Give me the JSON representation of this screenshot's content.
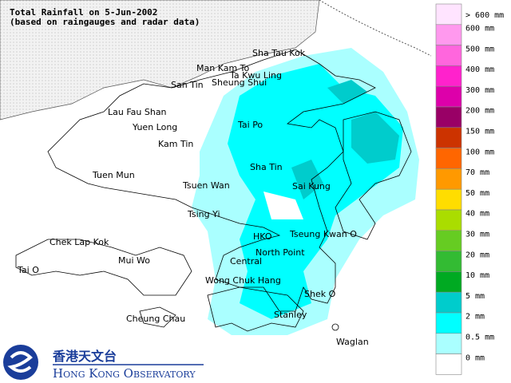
{
  "title": {
    "line1": "Total Rainfall on 5-Jun-2002",
    "line2": "(based on raingauges and radar data)"
  },
  "places": [
    "Sha Tau Kok",
    "Man Kam To",
    "Ta Kwu Ling",
    "San Tin",
    "Sheung Shui",
    "Lau Fau Shan",
    "Yuen Long",
    "Kam Tin",
    "Tai Po",
    "Tuen Mun",
    "Tsuen Wan",
    "Sha Tin",
    "Sai Kung",
    "Tsing Yi",
    "Chek Lap Kok",
    "HKO",
    "Tseung Kwan O",
    "North Point",
    "Mui Wo",
    "Central",
    "Tai O",
    "Wong Chuk Hang",
    "Shek O",
    "Stanley",
    "Cheung Chau",
    "Waglan"
  ],
  "legend": [
    {
      "label": "> 600 mm",
      "color": "#ffe4ff"
    },
    {
      "label": "600 mm",
      "color": "#ff99ee"
    },
    {
      "label": "500 mm",
      "color": "#ff66dd"
    },
    {
      "label": "400 mm",
      "color": "#ff22cc"
    },
    {
      "label": "300 mm",
      "color": "#dd00aa"
    },
    {
      "label": "200 mm",
      "color": "#990066"
    },
    {
      "label": "150 mm",
      "color": "#cc3300"
    },
    {
      "label": "100 mm",
      "color": "#ff6600"
    },
    {
      "label": "70 mm",
      "color": "#ff9900"
    },
    {
      "label": "50 mm",
      "color": "#ffdd00"
    },
    {
      "label": "40 mm",
      "color": "#aadd00"
    },
    {
      "label": "30 mm",
      "color": "#66cc22"
    },
    {
      "label": "20 mm",
      "color": "#33bb33"
    },
    {
      "label": "10 mm",
      "color": "#00aa22"
    },
    {
      "label": "5 mm",
      "color": "#00cccc"
    },
    {
      "label": "2 mm",
      "color": "#00ffff"
    },
    {
      "label": "0.5 mm",
      "color": "#aaffff"
    },
    {
      "label": "0 mm",
      "color": "#ffffff"
    }
  ],
  "logo": {
    "chinese": "香港天文台",
    "english": "Hong Kong Observatory"
  }
}
